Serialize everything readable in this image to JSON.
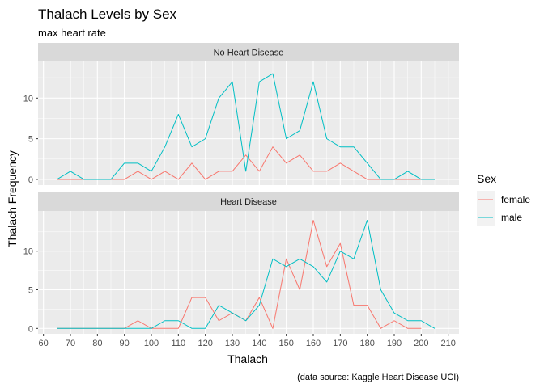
{
  "chart_data": {
    "type": "line",
    "title": "Thalach Levels by Sex",
    "subtitle": "max heart rate",
    "xlabel": "Thalach",
    "ylabel": "Thalach Frequency",
    "caption": "(data source: Kaggle Heart Disease UCI)",
    "xlim": [
      58,
      214
    ],
    "x_ticks": [
      60,
      70,
      80,
      90,
      100,
      110,
      120,
      130,
      140,
      150,
      160,
      170,
      180,
      190,
      200,
      210
    ],
    "legend": {
      "title": "Sex",
      "position": "right",
      "entries": [
        {
          "name": "female",
          "color": "#F8766D"
        },
        {
          "name": "male",
          "color": "#00BFC4"
        }
      ]
    },
    "x": [
      65,
      70,
      75,
      80,
      85,
      90,
      95,
      100,
      105,
      110,
      115,
      120,
      125,
      130,
      135,
      140,
      145,
      150,
      155,
      160,
      165,
      170,
      175,
      180,
      185,
      190,
      195,
      200,
      205
    ],
    "panels": [
      {
        "label": "No Heart Disease",
        "ylim": [
          -0.7,
          14.5
        ],
        "y_ticks": [
          0,
          5,
          10
        ],
        "series": [
          {
            "name": "female",
            "color": "#F8766D",
            "values": [
              0,
              0,
              0,
              0,
              0,
              0,
              1,
              0,
              1,
              0,
              2,
              0,
              1,
              1,
              3,
              1,
              4,
              2,
              3,
              1,
              1,
              2,
              1,
              0,
              0,
              0,
              0,
              0,
              null
            ]
          },
          {
            "name": "male",
            "color": "#00BFC4",
            "values": [
              0,
              1,
              0,
              0,
              0,
              2,
              2,
              1,
              4,
              8,
              4,
              5,
              10,
              12,
              1,
              12,
              13,
              5,
              6,
              12,
              5,
              4,
              4,
              2,
              0,
              0,
              1,
              0,
              0
            ]
          }
        ]
      },
      {
        "label": "Heart Disease",
        "ylim": [
          -0.7,
          15.2
        ],
        "y_ticks": [
          0,
          5,
          10
        ],
        "series": [
          {
            "name": "female",
            "color": "#F8766D",
            "values": [
              0,
              0,
              0,
              0,
              0,
              0,
              1,
              0,
              0,
              0,
              4,
              4,
              1,
              2,
              1,
              4,
              0,
              9,
              5,
              14,
              8,
              11,
              3,
              3,
              0,
              1,
              0,
              0,
              null
            ]
          },
          {
            "name": "male",
            "color": "#00BFC4",
            "values": [
              0,
              0,
              0,
              0,
              0,
              0,
              0,
              0,
              1,
              1,
              0,
              0,
              3,
              2,
              1,
              3,
              9,
              8,
              9,
              8,
              6,
              10,
              9,
              14,
              5,
              2,
              1,
              1,
              0
            ]
          }
        ]
      }
    ]
  }
}
